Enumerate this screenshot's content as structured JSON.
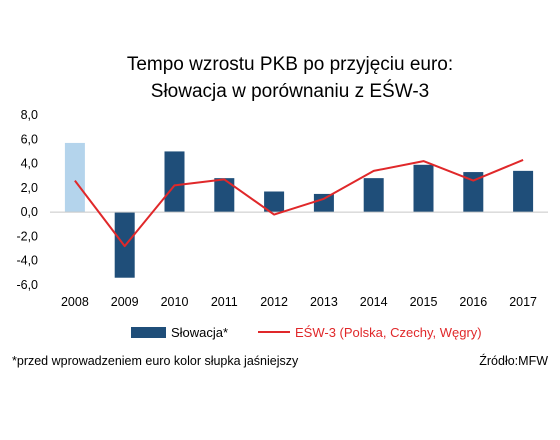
{
  "chart_data": {
    "type": "bar",
    "title_line1": "Tempo wzrostu PKB po przyjęciu euro:",
    "title_line2": "Słowacja w porównaniu z EŚW-3",
    "categories": [
      "2008",
      "2009",
      "2010",
      "2011",
      "2012",
      "2013",
      "2014",
      "2015",
      "2016",
      "2017"
    ],
    "series": [
      {
        "name": "Słowacja*",
        "kind": "bar",
        "color": "#1F4E79",
        "highlight_color": "#B4D4EC",
        "highlight_index": 0,
        "values": [
          5.7,
          -5.4,
          5.0,
          2.8,
          1.7,
          1.5,
          2.8,
          3.9,
          3.3,
          3.4
        ]
      },
      {
        "name": "EŚW-3 (Polska, Czechy, Węgry)",
        "kind": "line",
        "color": "#E0282A",
        "values": [
          2.6,
          -2.8,
          2.2,
          2.7,
          -0.2,
          1.1,
          3.4,
          4.2,
          2.6,
          4.3
        ]
      }
    ],
    "ylim": [
      -6,
      8
    ],
    "yticks": [
      "8,0",
      "6,0",
      "4,0",
      "2,0",
      "0,0",
      "-2,0",
      "-4,0",
      "-6,0"
    ],
    "ytick_values": [
      8,
      6,
      4,
      2,
      0,
      -2,
      -4,
      -6
    ],
    "grid": false,
    "legend_position": "bottom",
    "footnote": "*przed wprowadzeniem euro kolor słupka jaśniejszy",
    "source": "Źródło:MFW"
  }
}
